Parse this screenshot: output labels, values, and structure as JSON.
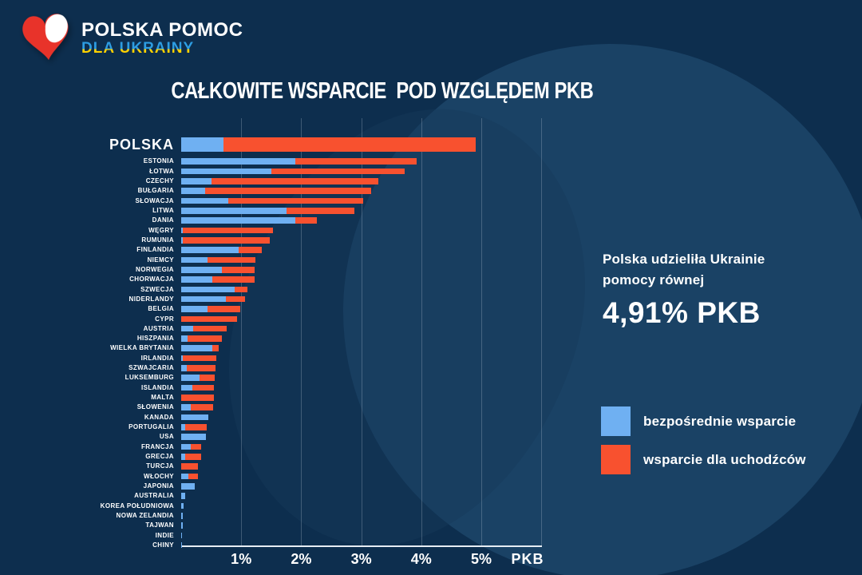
{
  "brand": {
    "line1": "POLSKA POMOC",
    "line2": "DLA UKRAINY"
  },
  "title": "CAŁKOWITE WSPARCIE  POD WZGLĘDEM PKB",
  "highlight": {
    "line1": "Polska udzieliła Ukrainie",
    "line2": "pomocy równej",
    "value": "4,91% PKB"
  },
  "legend": [
    {
      "label": "bezpośrednie wsparcie",
      "swatch": "direct"
    },
    {
      "label": "wsparcie dla uchodźców",
      "swatch": "refugee"
    }
  ],
  "colors": {
    "background": "#0d2e4e",
    "direct": "#6fb0f2",
    "refugee": "#f8512f",
    "axis": "#e6edf4",
    "text": "#ffffff",
    "brand_blue": "#2d9de2",
    "brand_yellow": "#ffd200",
    "logo_red": "#e8332a",
    "logo_white": "#ffffff"
  },
  "chart_data": {
    "type": "bar",
    "orientation": "horizontal",
    "stacked": true,
    "unit": "% PKB",
    "xlabel": "PKB",
    "ticks": [
      "1%",
      "2%",
      "3%",
      "4%",
      "5%"
    ],
    "tick_values": [
      1,
      2,
      3,
      4,
      5
    ],
    "xlim": [
      0,
      6
    ],
    "grid": true,
    "legend_position": "right",
    "featured_category": "POLSKA",
    "featured_total": "4,91% PKB",
    "categories": [
      "POLSKA",
      "ESTONIA",
      "ŁOTWA",
      "CZECHY",
      "BUŁGARIA",
      "SŁOWACJA",
      "LITWA",
      "DANIA",
      "WĘGRY",
      "RUMUNIA",
      "FINLANDIA",
      "NIEMCY",
      "NORWEGIA",
      "CHORWACJA",
      "SZWECJA",
      "NIDERLANDY",
      "BELGIA",
      "CYPR",
      "AUSTRIA",
      "HISZPANIA",
      "WIELKA BRYTANIA",
      "IRLANDIA",
      "SZWAJCARIA",
      "LUKSEMBURG",
      "ISLANDIA",
      "MALTA",
      "SŁOWENIA",
      "KANADA",
      "PORTUGALIA",
      "USA",
      "FRANCJA",
      "GRECJA",
      "TURCJA",
      "WŁOCHY",
      "JAPONIA",
      "AUSTRALIA",
      "KOREA POŁUDNIOWA",
      "NOWA ZELANDIA",
      "TAJWAN",
      "INDIE",
      "CHINY"
    ],
    "series": [
      {
        "name": "bezpośrednie wsparcie",
        "color": "#6fb0f2",
        "values": [
          0.7,
          1.9,
          1.5,
          0.51,
          0.4,
          0.78,
          1.75,
          1.9,
          0.03,
          0.02,
          0.96,
          0.44,
          0.68,
          0.52,
          0.89,
          0.75,
          0.44,
          0.0,
          0.2,
          0.11,
          0.52,
          0.02,
          0.09,
          0.31,
          0.19,
          0.0,
          0.16,
          0.45,
          0.06,
          0.41,
          0.16,
          0.06,
          0.0,
          0.12,
          0.23,
          0.07,
          0.04,
          0.03,
          0.02,
          0.015,
          0.015
        ]
      },
      {
        "name": "wsparcie dla uchodźców",
        "color": "#f8512f",
        "values": [
          4.21,
          2.02,
          2.22,
          2.77,
          2.77,
          2.25,
          1.14,
          0.36,
          1.5,
          1.45,
          0.38,
          0.8,
          0.55,
          0.7,
          0.21,
          0.31,
          0.54,
          0.93,
          0.56,
          0.57,
          0.1,
          0.56,
          0.48,
          0.25,
          0.35,
          0.54,
          0.37,
          0.0,
          0.37,
          0.0,
          0.17,
          0.27,
          0.28,
          0.16,
          0.0,
          0.0,
          0.0,
          0.0,
          0.0,
          0.0,
          0.0
        ]
      }
    ]
  }
}
